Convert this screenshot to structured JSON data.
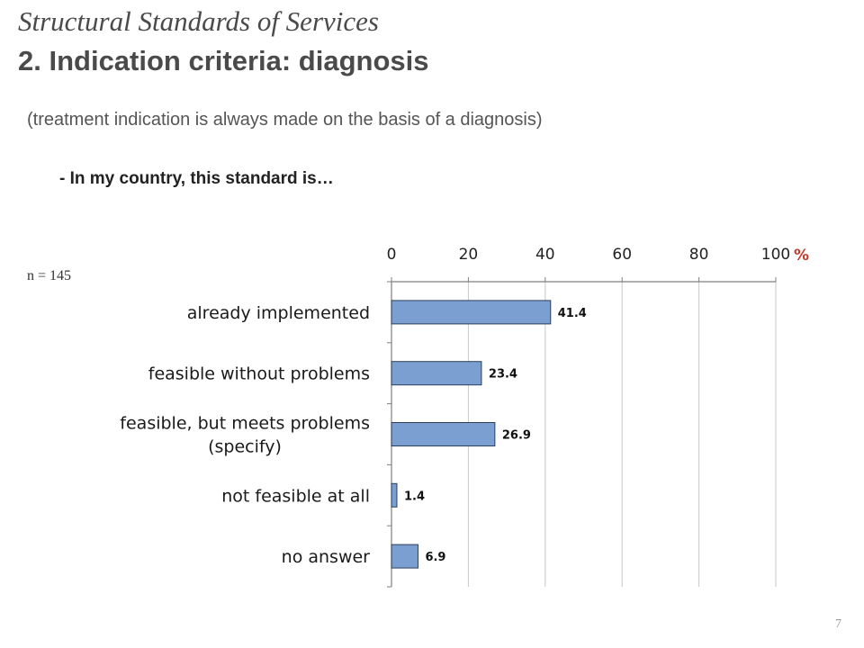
{
  "header": {
    "title_line1": "Structural Standards of Services",
    "title_line2": "2. Indication criteria: diagnosis",
    "subtitle": "(treatment indication is always made on  the basis of a diagnosis)",
    "question": "- In my country, this standard is…"
  },
  "sample_label": "n = 145",
  "page_number": "7",
  "colors": {
    "bar_fill": "#7a9fd0",
    "bar_stroke": "#2b3f5c",
    "axis": "#7f7f7f",
    "grid": "#c8c8c8"
  },
  "chart_data": {
    "type": "bar",
    "orientation": "horizontal",
    "categories": [
      "already implemented",
      "feasible without problems",
      "feasible, but meets problems (specify)",
      "not feasible at all",
      "no answer"
    ],
    "category_lines": [
      [
        "already implemented"
      ],
      [
        "feasible without problems"
      ],
      [
        "feasible, but meets problems",
        "(specify)"
      ],
      [
        "not feasible at all"
      ],
      [
        "no answer"
      ]
    ],
    "values": [
      41.4,
      23.4,
      26.9,
      1.4,
      6.9
    ],
    "value_labels": [
      "41.4",
      "23.4",
      "26.9",
      "1.4",
      "6.9"
    ],
    "xlim": [
      0,
      100
    ],
    "xticks": [
      0,
      20,
      40,
      60,
      80,
      100
    ],
    "xtick_labels": [
      "0",
      "20",
      "40",
      "60",
      "80",
      "100"
    ],
    "x_axis_position": "top",
    "unit_label": "%",
    "grid": true,
    "legend": "none"
  }
}
